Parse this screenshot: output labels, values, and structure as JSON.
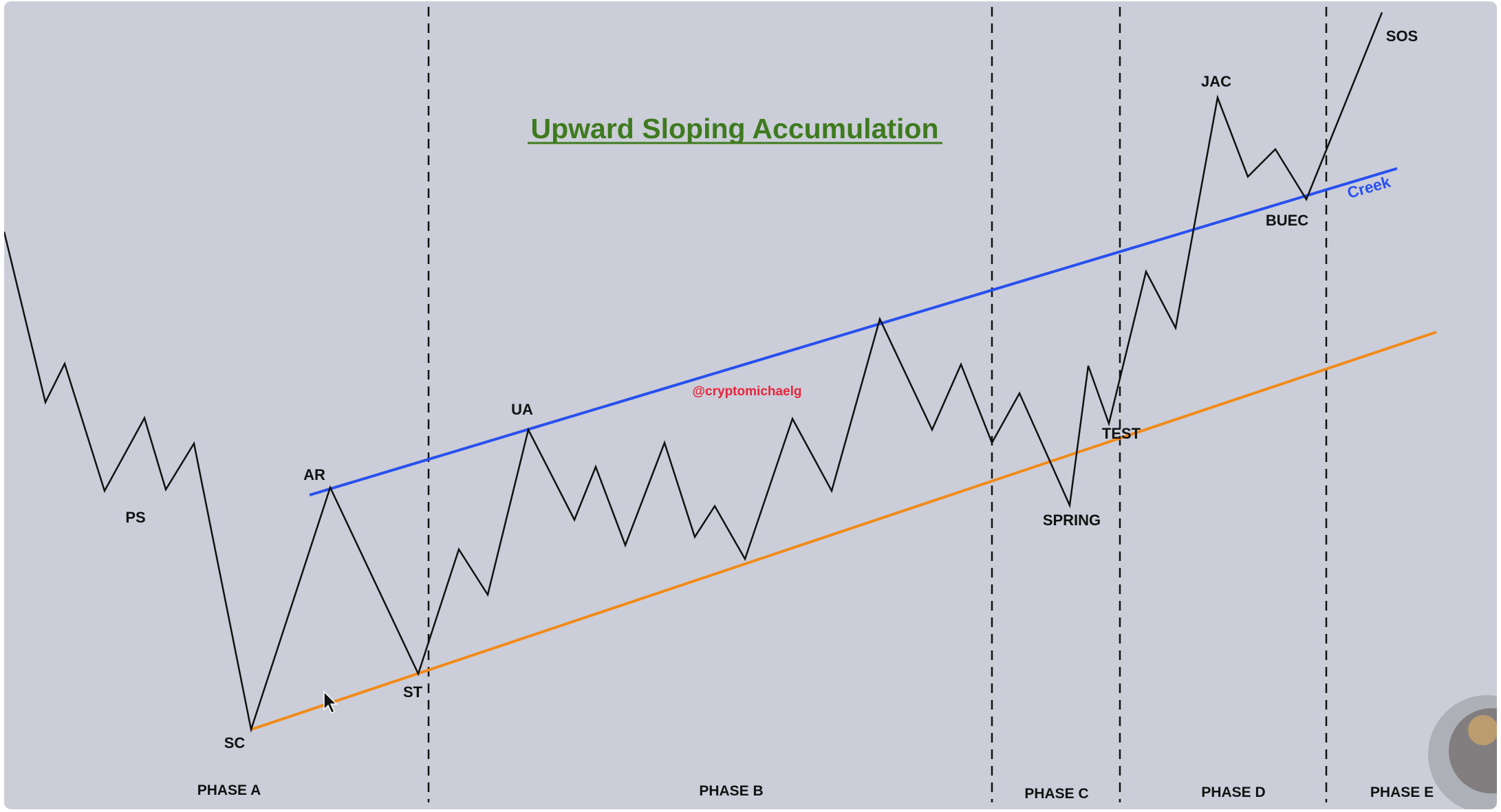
{
  "title": "Upward Sloping Accumulation",
  "watermark": "@cryptomichaelg",
  "creek_label": "Creek",
  "events": [
    "PS",
    "SC",
    "AR",
    "ST",
    "UA",
    "SPRING",
    "TEST",
    "JAC",
    "BUEC",
    "SOS"
  ],
  "phases": [
    "PHASE A",
    "PHASE B",
    "PHASE C",
    "PHASE D",
    "PHASE E"
  ],
  "colors": {
    "background": "#cbced8",
    "price_line": "#111111",
    "creek_line": "#2850ee",
    "support_line": "#f28a18",
    "title": "#3e7a1f",
    "watermark": "#e8243c"
  }
}
